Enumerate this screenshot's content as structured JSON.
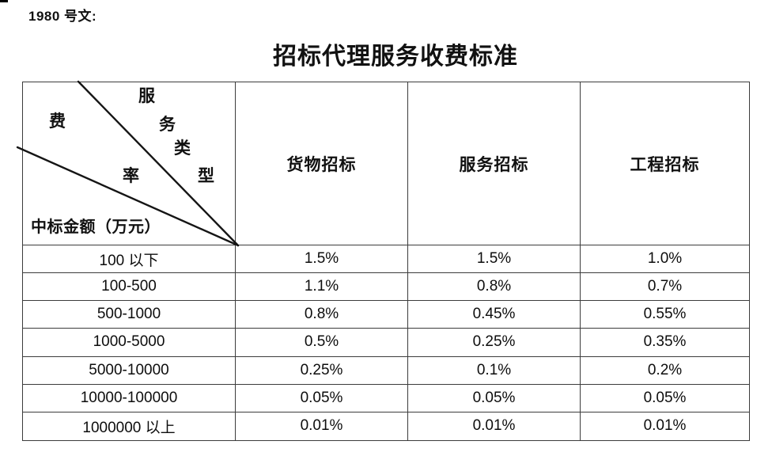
{
  "page": {
    "doc_ref": "1980 号文:",
    "title": "招标代理服务收费标准"
  },
  "table": {
    "corner": {
      "row_axis_label": "费率",
      "row_axis_chars": [
        "费",
        "率"
      ],
      "col_axis_label": "服务类型",
      "col_axis_chars": [
        "服",
        "务",
        "类",
        "型"
      ],
      "bottom_label": "中标金额（万元）"
    },
    "columns": [
      "货物招标",
      "服务招标",
      "工程招标"
    ],
    "rows": [
      {
        "label": "100 以下",
        "values": [
          "1.5%",
          "1.5%",
          "1.0%"
        ]
      },
      {
        "label": "100-500",
        "values": [
          "1.1%",
          "0.8%",
          "0.7%"
        ]
      },
      {
        "label": "500-1000",
        "values": [
          "0.8%",
          "0.45%",
          "0.55%"
        ]
      },
      {
        "label": "1000-5000",
        "values": [
          "0.5%",
          "0.25%",
          "0.35%"
        ]
      },
      {
        "label": "5000-10000",
        "values": [
          "0.25%",
          "0.1%",
          "0.2%"
        ]
      },
      {
        "label": "10000-100000",
        "values": [
          "0.05%",
          "0.05%",
          "0.05%"
        ]
      },
      {
        "label": "1000000 以上",
        "values": [
          "0.01%",
          "0.01%",
          "0.01%"
        ]
      }
    ],
    "border_color": "#3c3c3c",
    "text_color": "#111111"
  }
}
